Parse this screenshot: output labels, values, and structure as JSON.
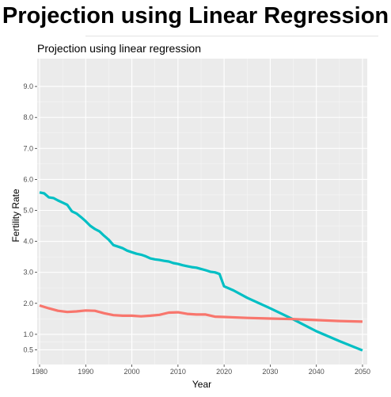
{
  "header": {
    "title": "Projection using Linear Regression"
  },
  "chart_data": {
    "type": "line",
    "title": "Projection using linear regression",
    "xlabel": "Year",
    "ylabel": "Fertility Rate",
    "xlim": [
      1980,
      2050
    ],
    "ylim": [
      0,
      9.5
    ],
    "xticks": [
      1980,
      1990,
      2000,
      2010,
      2020,
      2030,
      2040,
      2050
    ],
    "yticks": [
      0.5,
      1.0,
      2.0,
      3.0,
      4.0,
      5.0,
      6.0,
      7.0,
      8.0,
      9.0
    ],
    "ytick_labels": [
      "0.5",
      "1.0",
      "2.0",
      "3.0",
      "4.0",
      "5.0",
      "6.0",
      "7.0",
      "8.0",
      "9.0"
    ],
    "grid": true,
    "legend": "none",
    "series": [
      {
        "color": "#00BFC4",
        "x": [
          1980,
          1981,
          1982,
          1983,
          1984,
          1985,
          1986,
          1987,
          1988,
          1989,
          1990,
          1991,
          1992,
          1993,
          1994,
          1995,
          1996,
          1997,
          1998,
          1999,
          2000,
          2001,
          2002,
          2003,
          2004,
          2005,
          2006,
          2007,
          2008,
          2009,
          2010,
          2011,
          2012,
          2013,
          2014,
          2015,
          2016,
          2017,
          2018,
          2019,
          2020,
          2022,
          2025,
          2030,
          2035,
          2040,
          2045,
          2050
        ],
        "y": [
          5.58,
          5.55,
          5.42,
          5.4,
          5.32,
          5.25,
          5.18,
          4.97,
          4.9,
          4.78,
          4.65,
          4.5,
          4.4,
          4.32,
          4.18,
          4.05,
          3.88,
          3.83,
          3.78,
          3.7,
          3.65,
          3.6,
          3.57,
          3.52,
          3.45,
          3.42,
          3.4,
          3.37,
          3.35,
          3.3,
          3.27,
          3.23,
          3.2,
          3.17,
          3.15,
          3.11,
          3.07,
          3.02,
          3.0,
          2.95,
          2.55,
          2.42,
          2.18,
          1.84,
          1.48,
          1.1,
          0.78,
          0.48
        ]
      },
      {
        "color": "#F8766D",
        "x": [
          1980,
          1982,
          1984,
          1986,
          1988,
          1990,
          1992,
          1994,
          1996,
          1998,
          2000,
          2002,
          2004,
          2006,
          2008,
          2010,
          2012,
          2014,
          2016,
          2018,
          2020,
          2025,
          2030,
          2035,
          2040,
          2045,
          2050
        ],
        "y": [
          1.93,
          1.84,
          1.76,
          1.72,
          1.74,
          1.77,
          1.76,
          1.68,
          1.62,
          1.6,
          1.6,
          1.58,
          1.6,
          1.63,
          1.7,
          1.71,
          1.66,
          1.64,
          1.64,
          1.57,
          1.56,
          1.53,
          1.51,
          1.49,
          1.46,
          1.43,
          1.41
        ]
      }
    ]
  }
}
